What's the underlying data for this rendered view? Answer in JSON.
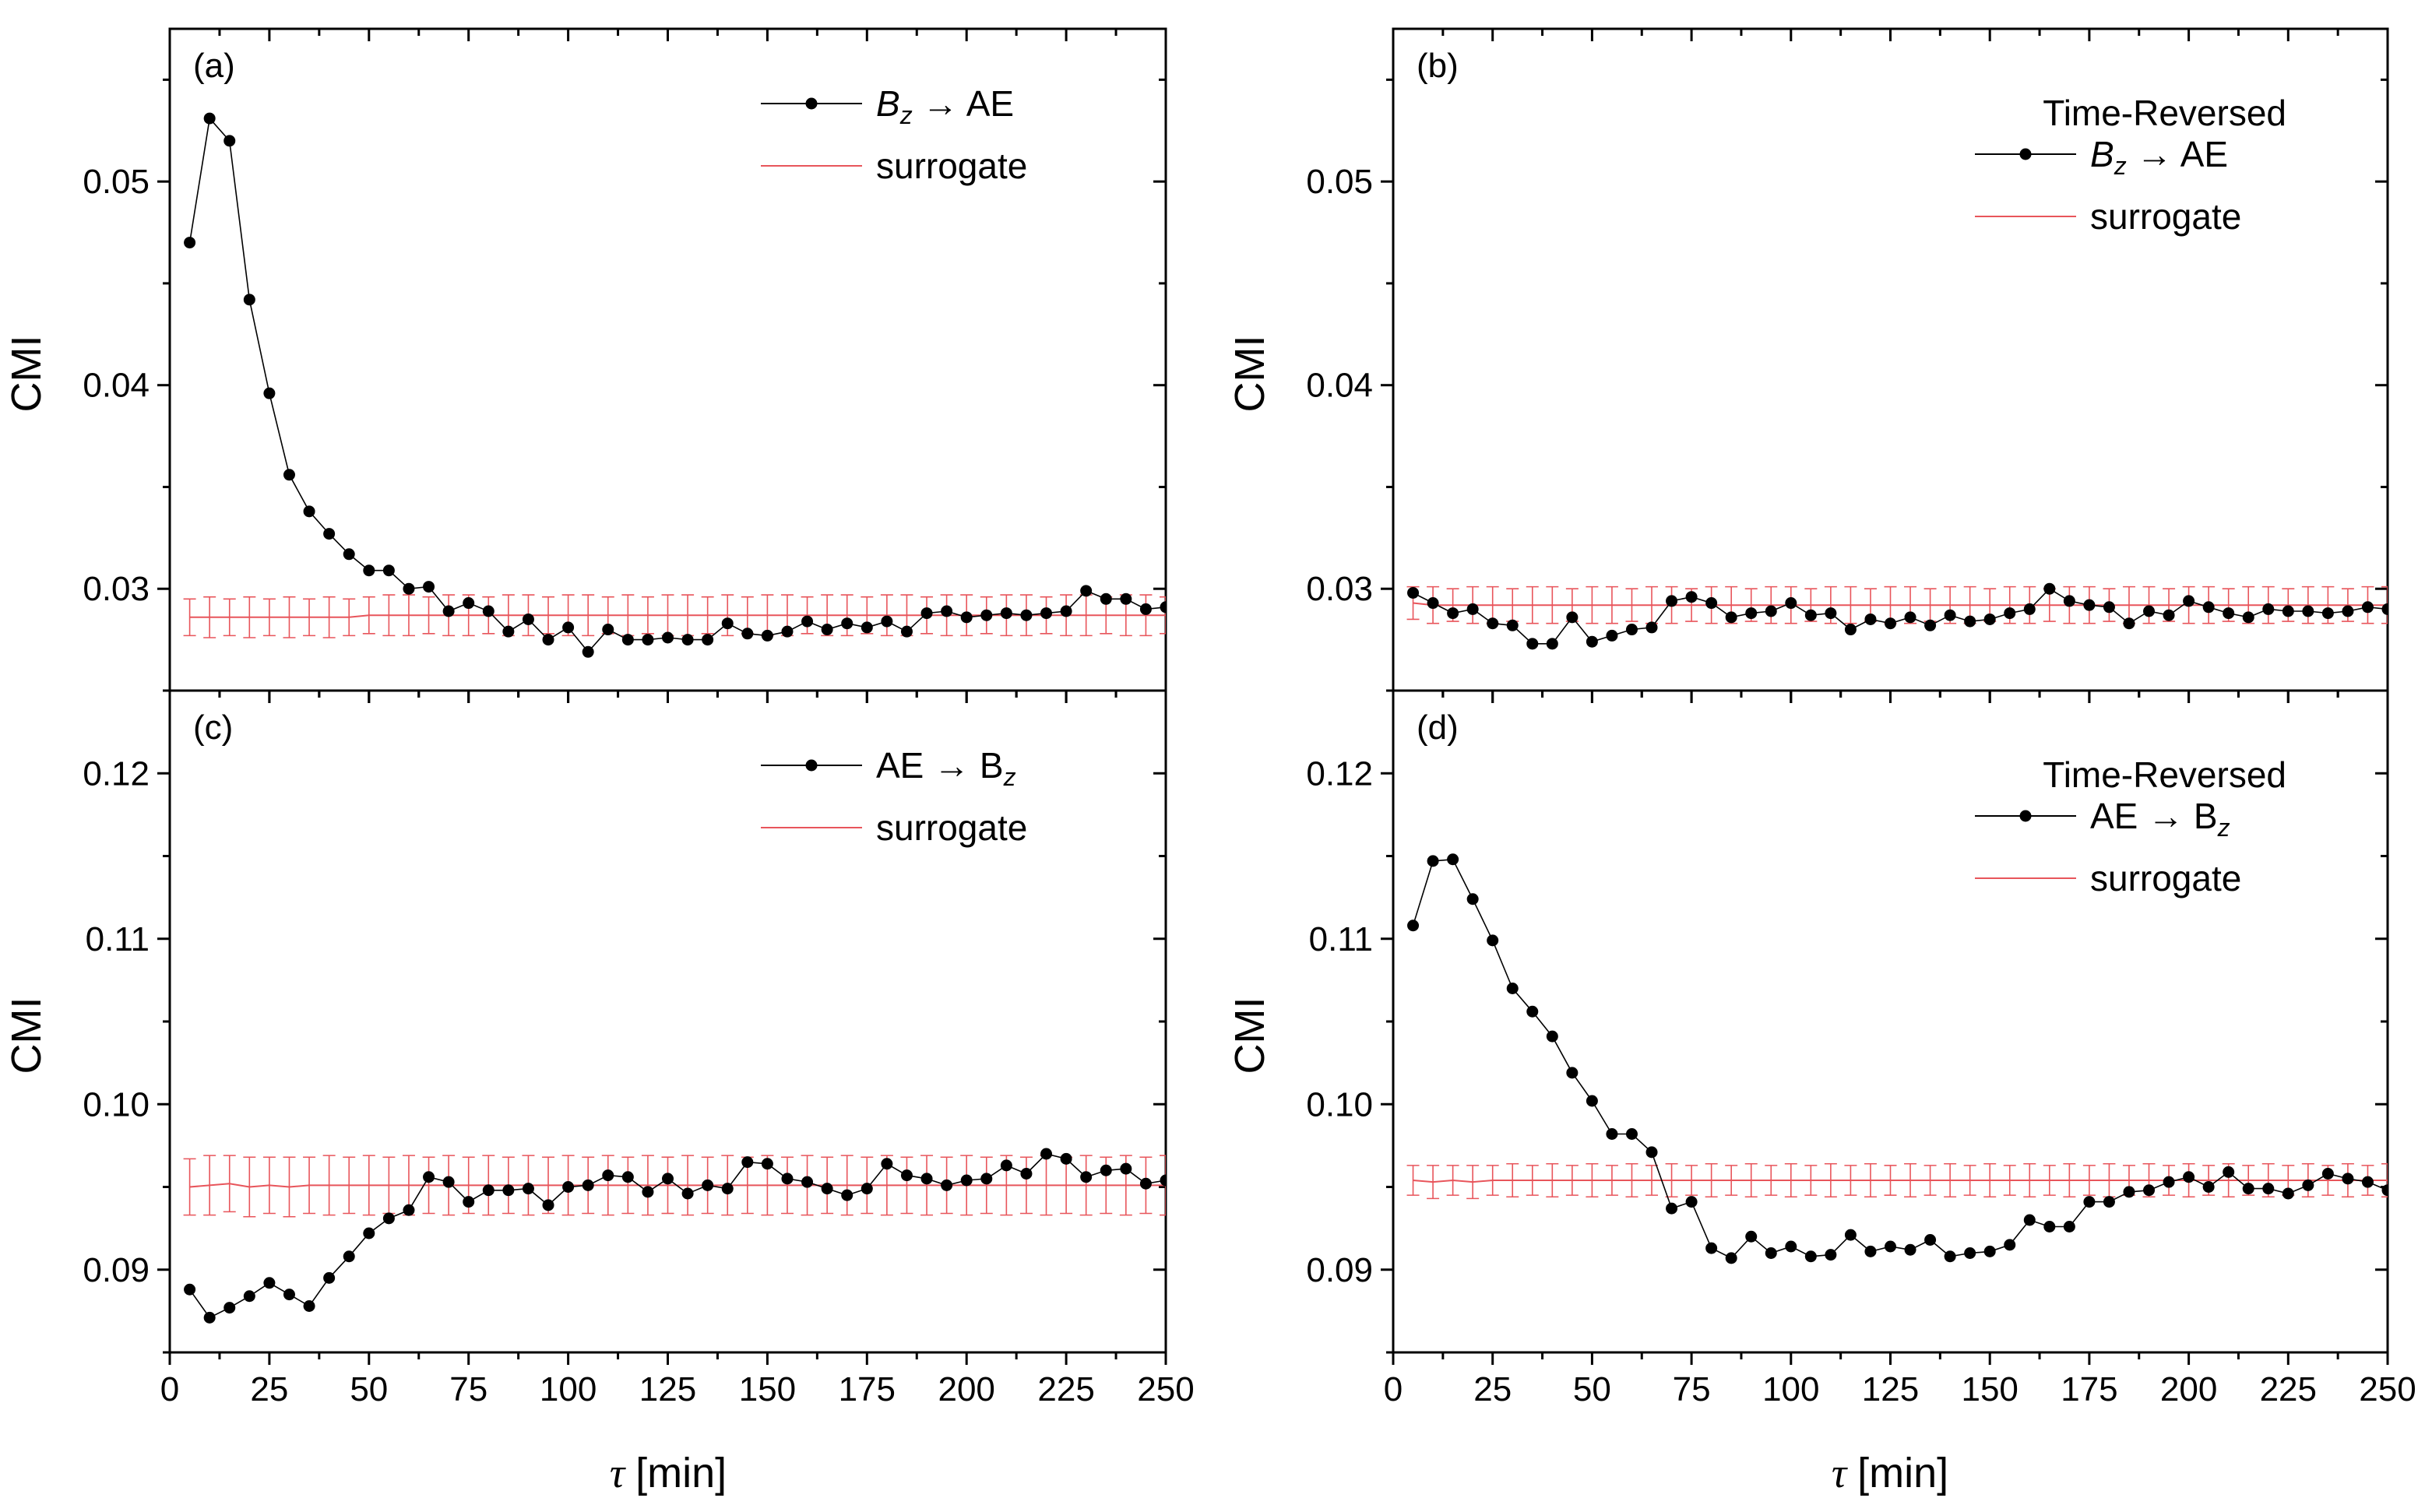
{
  "figure": {
    "xlabel_symbol": "τ",
    "xlabel_unit": "[min]"
  },
  "colors": {
    "series": "#000000",
    "surrogate": "#e8555b",
    "axis": "#000000"
  },
  "chart_data": [
    {
      "id": "a",
      "type": "line",
      "tag": "(a)",
      "ylabel": "CMI",
      "ylim": [
        0.025,
        0.0575
      ],
      "xlim": [
        0,
        250
      ],
      "yticks": [
        "0.03",
        "0.04",
        "0.05"
      ],
      "xticks": [
        "0",
        "25",
        "50",
        "75",
        "100",
        "125",
        "150",
        "175",
        "200",
        "225",
        "250"
      ],
      "show_xticklabels": false,
      "legend": {
        "title": "",
        "series_label": [
          "B",
          "z",
          " → AE"
        ],
        "surrogate_label": "surrogate",
        "placement": "top-right"
      },
      "x": [
        5,
        10,
        15,
        20,
        25,
        30,
        35,
        40,
        45,
        50,
        55,
        60,
        65,
        70,
        75,
        80,
        85,
        90,
        95,
        100,
        105,
        110,
        115,
        120,
        125,
        130,
        135,
        140,
        145,
        150,
        155,
        160,
        165,
        170,
        175,
        180,
        185,
        190,
        195,
        200,
        205,
        210,
        215,
        220,
        225,
        230,
        235,
        240,
        245,
        250
      ],
      "series": [
        {
          "name": "Bz→AE",
          "values": [
            0.047,
            0.0531,
            0.052,
            0.0442,
            0.0396,
            0.0356,
            0.0338,
            0.0327,
            0.0317,
            0.0309,
            0.0309,
            0.03,
            0.0301,
            0.0289,
            0.0293,
            0.0289,
            0.0279,
            0.0285,
            0.0275,
            0.0281,
            0.0269,
            0.028,
            0.0275,
            0.0275,
            0.0276,
            0.0275,
            0.0275,
            0.0283,
            0.0278,
            0.0277,
            0.0279,
            0.0284,
            0.028,
            0.0283,
            0.0281,
            0.0284,
            0.0279,
            0.0288,
            0.0289,
            0.0286,
            0.0287,
            0.0288,
            0.0287,
            0.0288,
            0.0289,
            0.0299,
            0.0295,
            0.0295,
            0.029,
            0.0291
          ]
        },
        {
          "name": "surrogate",
          "values": [
            0.0286,
            0.0286,
            0.0286,
            0.0286,
            0.0286,
            0.0286,
            0.0286,
            0.0286,
            0.0286,
            0.0287,
            0.0287,
            0.0287,
            0.0287,
            0.0287,
            0.0287,
            0.0287,
            0.0287,
            0.0287,
            0.0287,
            0.0287,
            0.0287,
            0.0287,
            0.0287,
            0.0287,
            0.0287,
            0.0287,
            0.0287,
            0.0287,
            0.0287,
            0.0287,
            0.0287,
            0.0287,
            0.0287,
            0.0287,
            0.0287,
            0.0287,
            0.0287,
            0.0287,
            0.0287,
            0.0287,
            0.0287,
            0.0287,
            0.0287,
            0.0287,
            0.0287,
            0.0287,
            0.0287,
            0.0287,
            0.0287,
            0.0287
          ],
          "error": [
            0.0009,
            0.001,
            0.0009,
            0.001,
            0.0009,
            0.001,
            0.0009,
            0.001,
            0.0009,
            0.0009,
            0.001,
            0.001,
            0.0009,
            0.001,
            0.001,
            0.0009,
            0.001,
            0.001,
            0.0009,
            0.001,
            0.001,
            0.0009,
            0.001,
            0.0009,
            0.001,
            0.001,
            0.0009,
            0.001,
            0.0009,
            0.001,
            0.001,
            0.0009,
            0.001,
            0.001,
            0.0009,
            0.001,
            0.001,
            0.0009,
            0.001,
            0.001,
            0.0009,
            0.001,
            0.001,
            0.0009,
            0.001,
            0.001,
            0.0009,
            0.001,
            0.001,
            0.0009
          ]
        }
      ]
    },
    {
      "id": "b",
      "type": "line",
      "tag": "(b)",
      "ylabel": "CMI",
      "ylim": [
        0.025,
        0.0575
      ],
      "xlim": [
        0,
        250
      ],
      "yticks": [
        "0.03",
        "0.04",
        "0.05"
      ],
      "xticks": [
        "0",
        "25",
        "50",
        "75",
        "100",
        "125",
        "150",
        "175",
        "200",
        "225",
        "250"
      ],
      "show_xticklabels": false,
      "legend": {
        "title": "Time-Reversed",
        "series_label": [
          "B",
          "z",
          " → AE"
        ],
        "surrogate_label": "surrogate",
        "placement": "top-right"
      },
      "x": [
        5,
        10,
        15,
        20,
        25,
        30,
        35,
        40,
        45,
        50,
        55,
        60,
        65,
        70,
        75,
        80,
        85,
        90,
        95,
        100,
        105,
        110,
        115,
        120,
        125,
        130,
        135,
        140,
        145,
        150,
        155,
        160,
        165,
        170,
        175,
        180,
        185,
        190,
        195,
        200,
        205,
        210,
        215,
        220,
        225,
        230,
        235,
        240,
        245,
        250
      ],
      "series": [
        {
          "name": "Bz→AE",
          "values": [
            0.0298,
            0.0293,
            0.0288,
            0.029,
            0.0283,
            0.0282,
            0.0273,
            0.0273,
            0.0286,
            0.0274,
            0.0277,
            0.028,
            0.0281,
            0.0294,
            0.0296,
            0.0293,
            0.0286,
            0.0288,
            0.0289,
            0.0293,
            0.0287,
            0.0288,
            0.028,
            0.0285,
            0.0283,
            0.0286,
            0.0282,
            0.0287,
            0.0284,
            0.0285,
            0.0288,
            0.029,
            0.03,
            0.0294,
            0.0292,
            0.0291,
            0.0283,
            0.0289,
            0.0287,
            0.0294,
            0.0291,
            0.0288,
            0.0286,
            0.029,
            0.0289,
            0.0289,
            0.0288,
            0.0289,
            0.0291,
            0.029
          ]
        },
        {
          "name": "surrogate",
          "values": [
            0.0293,
            0.0292,
            0.0292,
            0.0292,
            0.0292,
            0.0292,
            0.0292,
            0.0292,
            0.0292,
            0.0292,
            0.0292,
            0.0292,
            0.0292,
            0.0292,
            0.0292,
            0.0292,
            0.0292,
            0.0292,
            0.0292,
            0.0292,
            0.0292,
            0.0292,
            0.0292,
            0.0292,
            0.0292,
            0.0292,
            0.0292,
            0.0292,
            0.0292,
            0.0292,
            0.0292,
            0.0292,
            0.0292,
            0.0292,
            0.0292,
            0.0292,
            0.0292,
            0.0292,
            0.0292,
            0.0292,
            0.0292,
            0.0292,
            0.0292,
            0.0292,
            0.0292,
            0.0292,
            0.0292,
            0.0292,
            0.0292,
            0.0292
          ],
          "error": [
            0.0008,
            0.0009,
            0.0008,
            0.0009,
            0.0009,
            0.0008,
            0.0009,
            0.0009,
            0.0008,
            0.0009,
            0.0009,
            0.0008,
            0.0009,
            0.0009,
            0.0008,
            0.0009,
            0.0009,
            0.0008,
            0.0009,
            0.0009,
            0.0008,
            0.0009,
            0.0009,
            0.0008,
            0.0009,
            0.0009,
            0.0008,
            0.0009,
            0.0009,
            0.0008,
            0.0009,
            0.0009,
            0.0008,
            0.0009,
            0.0009,
            0.0008,
            0.0009,
            0.0009,
            0.0008,
            0.0009,
            0.0009,
            0.0008,
            0.0009,
            0.0009,
            0.0008,
            0.0009,
            0.0009,
            0.0008,
            0.0009,
            0.0009
          ]
        }
      ]
    },
    {
      "id": "c",
      "type": "line",
      "tag": "(c)",
      "ylabel": "CMI",
      "ylim": [
        0.085,
        0.125
      ],
      "xlim": [
        0,
        250
      ],
      "yticks": [
        "0.09",
        "0.10",
        "0.11",
        "0.12"
      ],
      "xticks": [
        "0",
        "25",
        "50",
        "75",
        "100",
        "125",
        "150",
        "175",
        "200",
        "225",
        "250"
      ],
      "show_xticklabels": true,
      "legend": {
        "title": "",
        "series_label": [
          "AE → B",
          "z",
          ""
        ],
        "surrogate_label": "surrogate",
        "placement": "top-right"
      },
      "x": [
        5,
        10,
        15,
        20,
        25,
        30,
        35,
        40,
        45,
        50,
        55,
        60,
        65,
        70,
        75,
        80,
        85,
        90,
        95,
        100,
        105,
        110,
        115,
        120,
        125,
        130,
        135,
        140,
        145,
        150,
        155,
        160,
        165,
        170,
        175,
        180,
        185,
        190,
        195,
        200,
        205,
        210,
        215,
        220,
        225,
        230,
        235,
        240,
        245,
        250
      ],
      "series": [
        {
          "name": "AE→Bz",
          "values": [
            0.0888,
            0.0871,
            0.0877,
            0.0884,
            0.0892,
            0.0885,
            0.0878,
            0.0895,
            0.0908,
            0.0922,
            0.0931,
            0.0936,
            0.0956,
            0.0953,
            0.0941,
            0.0948,
            0.0948,
            0.0949,
            0.0939,
            0.095,
            0.0951,
            0.0957,
            0.0956,
            0.0947,
            0.0955,
            0.0946,
            0.0951,
            0.0949,
            0.0965,
            0.0964,
            0.0955,
            0.0953,
            0.0949,
            0.0945,
            0.0949,
            0.0964,
            0.0957,
            0.0955,
            0.0951,
            0.0954,
            0.0955,
            0.0963,
            0.0958,
            0.097,
            0.0967,
            0.0956,
            0.096,
            0.0961,
            0.0952,
            0.0954
          ]
        },
        {
          "name": "surrogate",
          "values": [
            0.095,
            0.0951,
            0.0952,
            0.095,
            0.0951,
            0.095,
            0.0951,
            0.0951,
            0.0951,
            0.0951,
            0.0951,
            0.0951,
            0.0951,
            0.0951,
            0.0951,
            0.0951,
            0.0951,
            0.0951,
            0.0951,
            0.0951,
            0.0951,
            0.0951,
            0.0951,
            0.0951,
            0.0951,
            0.0951,
            0.0951,
            0.0951,
            0.0951,
            0.0951,
            0.0951,
            0.0951,
            0.0951,
            0.0951,
            0.0951,
            0.0951,
            0.0951,
            0.0951,
            0.0951,
            0.0951,
            0.0951,
            0.0951,
            0.0951,
            0.0951,
            0.0951,
            0.0951,
            0.0951,
            0.0951,
            0.0951,
            0.0951
          ],
          "error": [
            0.0017,
            0.0018,
            0.0017,
            0.0018,
            0.0017,
            0.0018,
            0.0017,
            0.0018,
            0.0017,
            0.0018,
            0.0017,
            0.0018,
            0.0017,
            0.0018,
            0.0017,
            0.0018,
            0.0017,
            0.0018,
            0.0017,
            0.0018,
            0.0017,
            0.0018,
            0.0017,
            0.0018,
            0.0017,
            0.0018,
            0.0017,
            0.0018,
            0.0017,
            0.0018,
            0.0017,
            0.0018,
            0.0017,
            0.0018,
            0.0017,
            0.0018,
            0.0017,
            0.0018,
            0.0017,
            0.0018,
            0.0017,
            0.0018,
            0.0017,
            0.0018,
            0.0017,
            0.0018,
            0.0017,
            0.0018,
            0.0017,
            0.0018
          ]
        }
      ]
    },
    {
      "id": "d",
      "type": "line",
      "tag": "(d)",
      "ylabel": "CMI",
      "ylim": [
        0.085,
        0.125
      ],
      "xlim": [
        0,
        250
      ],
      "yticks": [
        "0.09",
        "0.10",
        "0.11",
        "0.12"
      ],
      "xticks": [
        "0",
        "25",
        "50",
        "75",
        "100",
        "125",
        "150",
        "175",
        "200",
        "225",
        "250"
      ],
      "show_xticklabels": true,
      "legend": {
        "title": "Time-Reversed",
        "series_label": [
          "AE → B",
          "z",
          ""
        ],
        "surrogate_label": "surrogate",
        "placement": "top-right"
      },
      "x": [
        5,
        10,
        15,
        20,
        25,
        30,
        35,
        40,
        45,
        50,
        55,
        60,
        65,
        70,
        75,
        80,
        85,
        90,
        95,
        100,
        105,
        110,
        115,
        120,
        125,
        130,
        135,
        140,
        145,
        150,
        155,
        160,
        165,
        170,
        175,
        180,
        185,
        190,
        195,
        200,
        205,
        210,
        215,
        220,
        225,
        230,
        235,
        240,
        245,
        250
      ],
      "series": [
        {
          "name": "AE→Bz",
          "values": [
            0.1108,
            0.1147,
            0.1148,
            0.1124,
            0.1099,
            0.107,
            0.1056,
            0.1041,
            0.1019,
            0.1002,
            0.0982,
            0.0982,
            0.0971,
            0.0937,
            0.0941,
            0.0913,
            0.0907,
            0.092,
            0.091,
            0.0914,
            0.0908,
            0.0909,
            0.0921,
            0.0911,
            0.0914,
            0.0912,
            0.0918,
            0.0908,
            0.091,
            0.0911,
            0.0915,
            0.093,
            0.0926,
            0.0926,
            0.0941,
            0.0941,
            0.0947,
            0.0948,
            0.0953,
            0.0956,
            0.095,
            0.0959,
            0.0949,
            0.0949,
            0.0946,
            0.0951,
            0.0958,
            0.0955,
            0.0953,
            0.0948
          ]
        },
        {
          "name": "surrogate",
          "values": [
            0.0954,
            0.0953,
            0.0954,
            0.0953,
            0.0954,
            0.0954,
            0.0954,
            0.0954,
            0.0954,
            0.0954,
            0.0954,
            0.0954,
            0.0954,
            0.0954,
            0.0954,
            0.0954,
            0.0954,
            0.0954,
            0.0954,
            0.0954,
            0.0954,
            0.0954,
            0.0954,
            0.0954,
            0.0954,
            0.0954,
            0.0954,
            0.0954,
            0.0954,
            0.0954,
            0.0954,
            0.0954,
            0.0954,
            0.0954,
            0.0954,
            0.0954,
            0.0954,
            0.0954,
            0.0954,
            0.0954,
            0.0954,
            0.0954,
            0.0954,
            0.0954,
            0.0954,
            0.0954,
            0.0954,
            0.0954,
            0.0954,
            0.0954
          ],
          "error": [
            0.0009,
            0.001,
            0.0009,
            0.001,
            0.0009,
            0.001,
            0.0009,
            0.001,
            0.0009,
            0.001,
            0.0009,
            0.001,
            0.0009,
            0.001,
            0.0009,
            0.001,
            0.0009,
            0.001,
            0.0009,
            0.001,
            0.0009,
            0.001,
            0.0009,
            0.001,
            0.0009,
            0.001,
            0.0009,
            0.001,
            0.0009,
            0.001,
            0.0009,
            0.001,
            0.0009,
            0.001,
            0.0009,
            0.001,
            0.0009,
            0.001,
            0.0009,
            0.001,
            0.0009,
            0.001,
            0.0009,
            0.001,
            0.0009,
            0.001,
            0.0009,
            0.001,
            0.0009,
            0.001
          ]
        }
      ]
    }
  ]
}
